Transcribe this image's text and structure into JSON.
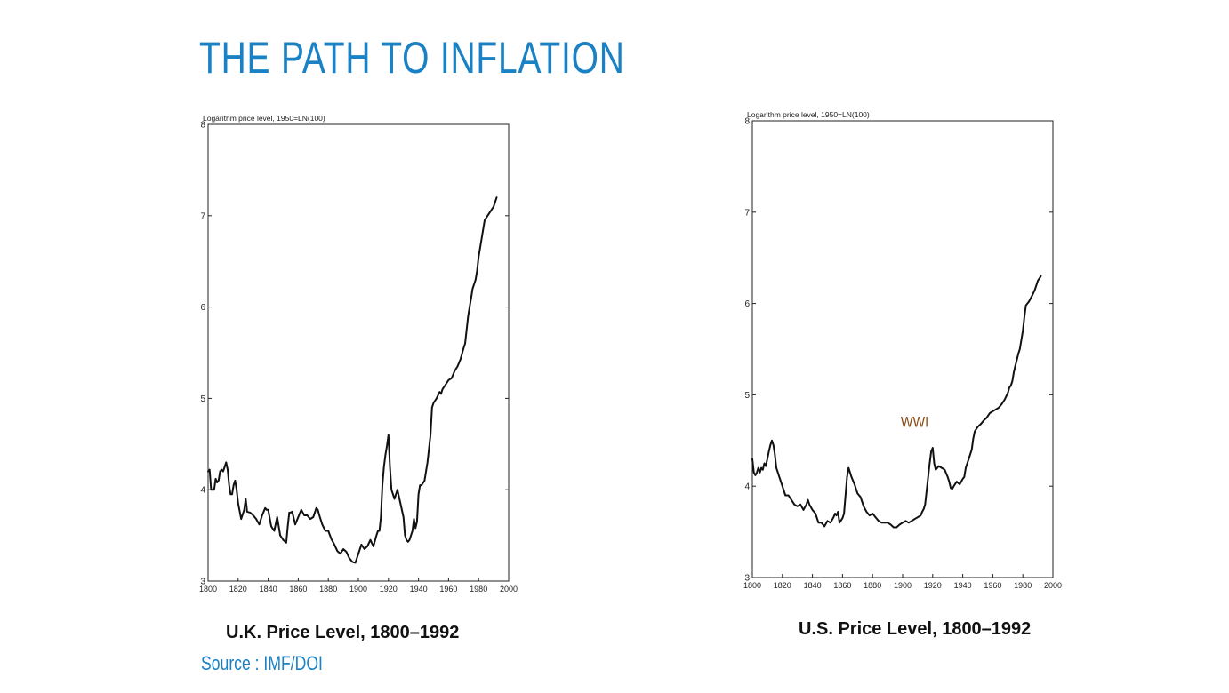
{
  "slide": {
    "title": "THE PATH TO INFLATION",
    "source": "Source : IMF/DOI",
    "accent_color": "#1a82c4"
  },
  "chart_data": [
    {
      "type": "line",
      "caption": "U.K. Price Level, 1800–1992",
      "ylabel": "Logarithm price level, 1950=LN(100)",
      "xlim": [
        1800,
        2000
      ],
      "ylim": [
        3,
        8
      ],
      "x_ticks": [
        1800,
        1820,
        1840,
        1860,
        1880,
        1900,
        1920,
        1940,
        1960,
        1980,
        2000
      ],
      "y_ticks": [
        3,
        4,
        5,
        6,
        7,
        8
      ],
      "grid": false,
      "line_color": "#111111",
      "annotations": [],
      "series": [
        {
          "x": [
            1800,
            1801,
            1802,
            1803,
            1804,
            1805,
            1806,
            1807,
            1808,
            1809,
            1810,
            1811,
            1812,
            1813,
            1814,
            1815,
            1816,
            1817,
            1818,
            1819,
            1820,
            1822,
            1824,
            1825,
            1826,
            1828,
            1830,
            1832,
            1834,
            1836,
            1838,
            1839,
            1840,
            1842,
            1844,
            1846,
            1848,
            1850,
            1852,
            1853,
            1854,
            1855,
            1856,
            1858,
            1860,
            1862,
            1864,
            1866,
            1868,
            1870,
            1872,
            1873,
            1874,
            1876,
            1878,
            1880,
            1882,
            1884,
            1886,
            1888,
            1890,
            1892,
            1894,
            1896,
            1898,
            1899,
            1900,
            1902,
            1904,
            1906,
            1908,
            1910,
            1912,
            1913,
            1914,
            1915,
            1916,
            1917,
            1918,
            1919,
            1920,
            1921,
            1922,
            1924,
            1926,
            1928,
            1930,
            1931,
            1932,
            1933,
            1934,
            1936,
            1937,
            1938,
            1939,
            1940,
            1941,
            1942,
            1944,
            1946,
            1947,
            1948,
            1949,
            1950,
            1952,
            1954,
            1955,
            1956,
            1958,
            1960,
            1962,
            1964,
            1966,
            1968,
            1970,
            1971,
            1972,
            1973,
            1974,
            1975,
            1976,
            1977,
            1978,
            1979,
            1980,
            1981,
            1982,
            1984,
            1986,
            1988,
            1990,
            1992
          ],
          "y": [
            4.2,
            4.22,
            4.0,
            4.0,
            4.0,
            4.12,
            4.08,
            4.1,
            4.2,
            4.22,
            4.2,
            4.25,
            4.3,
            4.22,
            4.05,
            3.95,
            3.95,
            4.05,
            4.1,
            4.0,
            3.85,
            3.68,
            3.78,
            3.9,
            3.76,
            3.75,
            3.72,
            3.68,
            3.62,
            3.72,
            3.8,
            3.78,
            3.78,
            3.6,
            3.55,
            3.7,
            3.5,
            3.45,
            3.42,
            3.6,
            3.75,
            3.75,
            3.76,
            3.62,
            3.7,
            3.78,
            3.72,
            3.72,
            3.68,
            3.7,
            3.8,
            3.78,
            3.72,
            3.62,
            3.55,
            3.55,
            3.46,
            3.4,
            3.33,
            3.3,
            3.35,
            3.32,
            3.25,
            3.21,
            3.2,
            3.25,
            3.3,
            3.4,
            3.35,
            3.38,
            3.45,
            3.38,
            3.5,
            3.55,
            3.55,
            3.7,
            4.05,
            4.25,
            4.38,
            4.48,
            4.6,
            4.25,
            4.0,
            3.9,
            4.0,
            3.85,
            3.7,
            3.5,
            3.45,
            3.43,
            3.45,
            3.55,
            3.68,
            3.58,
            3.65,
            3.95,
            4.05,
            4.05,
            4.1,
            4.3,
            4.45,
            4.6,
            4.9,
            4.95,
            5.0,
            5.07,
            5.05,
            5.1,
            5.15,
            5.2,
            5.22,
            5.3,
            5.35,
            5.43,
            5.55,
            5.6,
            5.75,
            5.9,
            6.0,
            6.1,
            6.2,
            6.25,
            6.3,
            6.4,
            6.55,
            6.65,
            6.75,
            6.95,
            7.0,
            7.05,
            7.1,
            7.2
          ]
        }
      ]
    },
    {
      "type": "line",
      "caption": "U.S. Price Level, 1800–1992",
      "ylabel": "Logarithm price level, 1950=LN(100)",
      "xlim": [
        1800,
        2000
      ],
      "ylim": [
        3,
        8
      ],
      "x_ticks": [
        1800,
        1820,
        1840,
        1860,
        1880,
        1900,
        1920,
        1940,
        1960,
        1980,
        2000
      ],
      "y_ticks": [
        3,
        4,
        5,
        6,
        7,
        8
      ],
      "grid": false,
      "line_color": "#111111",
      "annotations": [
        {
          "text": "WWI",
          "x": 1908,
          "y": 4.65,
          "color": "#8b4a12"
        }
      ],
      "series": [
        {
          "x": [
            1800,
            1801,
            1802,
            1803,
            1804,
            1805,
            1806,
            1807,
            1808,
            1809,
            1810,
            1811,
            1812,
            1813,
            1814,
            1815,
            1816,
            1818,
            1820,
            1822,
            1824,
            1826,
            1828,
            1830,
            1832,
            1834,
            1836,
            1837,
            1838,
            1840,
            1842,
            1844,
            1846,
            1848,
            1850,
            1852,
            1854,
            1855,
            1856,
            1857,
            1858,
            1860,
            1861,
            1862,
            1863,
            1864,
            1866,
            1868,
            1870,
            1872,
            1874,
            1876,
            1878,
            1880,
            1882,
            1884,
            1886,
            1888,
            1890,
            1892,
            1894,
            1896,
            1898,
            1900,
            1902,
            1904,
            1906,
            1908,
            1910,
            1912,
            1913,
            1914,
            1915,
            1916,
            1917,
            1918,
            1919,
            1920,
            1921,
            1922,
            1924,
            1926,
            1928,
            1930,
            1931,
            1932,
            1933,
            1934,
            1936,
            1938,
            1940,
            1941,
            1942,
            1944,
            1946,
            1947,
            1948,
            1950,
            1952,
            1954,
            1956,
            1958,
            1960,
            1962,
            1964,
            1966,
            1968,
            1970,
            1971,
            1972,
            1973,
            1974,
            1975,
            1976,
            1977,
            1978,
            1979,
            1980,
            1981,
            1982,
            1984,
            1986,
            1988,
            1990,
            1992
          ],
          "y": [
            4.3,
            4.15,
            4.12,
            4.15,
            4.2,
            4.15,
            4.2,
            4.18,
            4.25,
            4.22,
            4.3,
            4.38,
            4.45,
            4.5,
            4.45,
            4.35,
            4.2,
            4.1,
            4.0,
            3.9,
            3.9,
            3.85,
            3.8,
            3.78,
            3.8,
            3.74,
            3.8,
            3.85,
            3.8,
            3.74,
            3.7,
            3.6,
            3.6,
            3.56,
            3.62,
            3.6,
            3.66,
            3.7,
            3.68,
            3.72,
            3.6,
            3.65,
            3.7,
            3.9,
            4.1,
            4.2,
            4.1,
            4.02,
            3.92,
            3.88,
            3.78,
            3.72,
            3.68,
            3.7,
            3.66,
            3.62,
            3.6,
            3.6,
            3.6,
            3.58,
            3.55,
            3.55,
            3.58,
            3.6,
            3.62,
            3.6,
            3.62,
            3.64,
            3.66,
            3.68,
            3.72,
            3.75,
            3.8,
            3.95,
            4.1,
            4.25,
            4.38,
            4.42,
            4.25,
            4.18,
            4.22,
            4.2,
            4.18,
            4.1,
            4.05,
            3.98,
            3.97,
            4.0,
            4.05,
            4.02,
            4.08,
            4.1,
            4.2,
            4.3,
            4.4,
            4.52,
            4.6,
            4.65,
            4.68,
            4.72,
            4.75,
            4.8,
            4.82,
            4.84,
            4.86,
            4.9,
            4.95,
            5.02,
            5.08,
            5.1,
            5.15,
            5.25,
            5.32,
            5.38,
            5.45,
            5.5,
            5.6,
            5.7,
            5.85,
            5.98,
            6.02,
            6.08,
            6.15,
            6.25,
            6.3
          ]
        }
      ]
    }
  ]
}
